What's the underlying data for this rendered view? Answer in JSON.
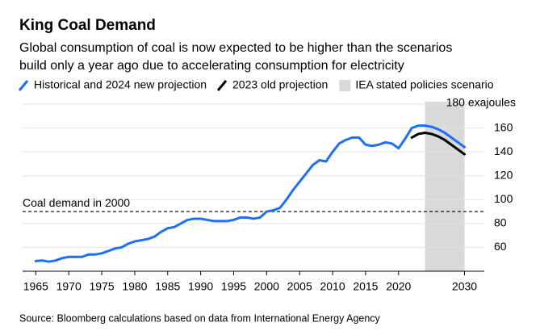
{
  "chart_data": {
    "type": "line",
    "title": "King Coal Demand",
    "subtitle": [
      "Global consumption of coal is now expected to be higher than the scenarios",
      "build only a year ago due to accelerating consumption for electricity"
    ],
    "source": "Source: Bloomberg calculations based on data from International Energy Agency",
    "series": [
      {
        "name": "Historical and 2024 new projection",
        "color": "#1f6ff2",
        "x": [
          1965,
          1966,
          1967,
          1968,
          1969,
          1970,
          1971,
          1972,
          1973,
          1974,
          1975,
          1976,
          1977,
          1978,
          1979,
          1980,
          1981,
          1982,
          1983,
          1984,
          1985,
          1986,
          1987,
          1988,
          1989,
          1990,
          1991,
          1992,
          1993,
          1994,
          1995,
          1996,
          1997,
          1998,
          1999,
          2000,
          2001,
          2002,
          2003,
          2004,
          2005,
          2006,
          2007,
          2008,
          2009,
          2010,
          2011,
          2012,
          2013,
          2014,
          2015,
          2016,
          2017,
          2018,
          2019,
          2020,
          2021,
          2022,
          2023,
          2024,
          2025,
          2026,
          2027,
          2028,
          2029,
          2030
        ],
        "values": [
          48.5,
          49,
          48,
          49,
          51,
          52,
          52,
          52,
          54,
          54,
          55,
          57,
          59,
          60,
          63,
          65,
          66,
          67,
          69,
          73,
          76,
          77,
          80,
          83,
          84,
          84,
          83,
          82,
          82,
          82,
          83,
          85,
          85,
          84,
          85,
          90,
          91,
          93,
          100,
          108,
          115,
          122,
          129,
          133,
          132,
          140,
          147,
          150,
          152,
          152,
          146,
          145,
          146,
          148,
          147,
          143,
          151,
          160,
          162,
          162,
          161,
          159,
          156,
          152,
          148,
          144
        ]
      },
      {
        "name": "2023 old projection",
        "color": "#000000",
        "x": [
          2022,
          2023,
          2024,
          2025,
          2026,
          2027,
          2028,
          2029,
          2030
        ],
        "values": [
          152,
          155,
          156,
          155,
          153,
          150,
          146,
          142,
          138
        ]
      }
    ],
    "shaded_region": {
      "name": "IEA stated policies scenario",
      "color": "#d9d9d9",
      "x": [
        2024,
        2030
      ]
    },
    "reference_line": {
      "label": "Coal demand in 2000",
      "value": 90
    },
    "xlim": [
      1963,
      2033
    ],
    "xticks": [
      1965,
      1970,
      1975,
      1980,
      1985,
      1990,
      1995,
      2000,
      2005,
      2010,
      2015,
      2020,
      2030
    ],
    "ylim": [
      40,
      180
    ],
    "yticks": [
      60,
      80,
      100,
      120,
      140,
      160,
      {
        "value": 180,
        "label": "180 exajoules"
      }
    ],
    "grid": true
  }
}
